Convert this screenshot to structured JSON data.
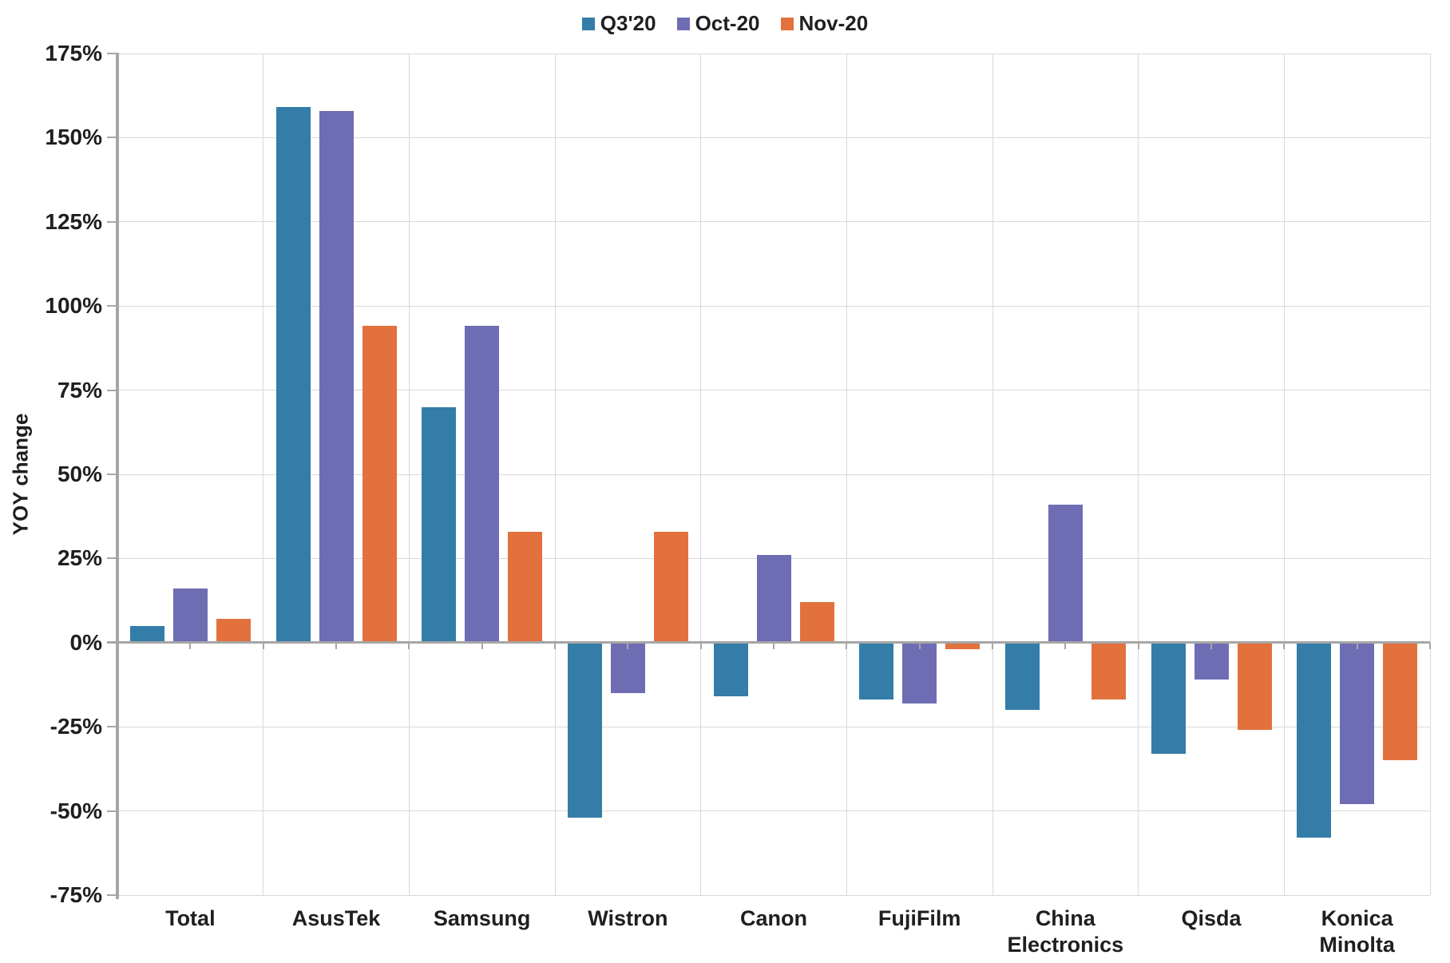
{
  "chart_data": {
    "type": "bar",
    "title": "",
    "ylabel": "YOY change",
    "categories": [
      "Total",
      "AsusTek",
      "Samsung",
      "Wistron",
      "Canon",
      "FujiFilm",
      "China\nElectronics",
      "Qisda",
      "Konica\nMinolta"
    ],
    "series": [
      {
        "name": "Q3'20",
        "color": "#337DA8",
        "values": [
          5,
          159,
          70,
          -52,
          -16,
          -17,
          -20,
          -33,
          -58
        ]
      },
      {
        "name": "Oct-20",
        "color": "#6E6DB4",
        "values": [
          16,
          158,
          94,
          -15,
          26,
          -18,
          41,
          -11,
          -48
        ]
      },
      {
        "name": "Nov-20",
        "color": "#E2713E",
        "values": [
          7,
          94,
          33,
          33,
          12,
          -2,
          -17,
          -26,
          -35
        ]
      }
    ],
    "ylim": [
      -75,
      175
    ],
    "ytick_step": 25,
    "ytick_labels": [
      "175%",
      "150%",
      "125%",
      "100%",
      "75%",
      "50%",
      "25%",
      "0%",
      "-25%",
      "-50%",
      "-75%"
    ],
    "grid": true,
    "legend_position": "top-center"
  },
  "colors": {
    "axis": "#A6A6A6",
    "gridline": "#D9D9D9",
    "text": "#1F1F1F",
    "background": "#FFFFFF"
  }
}
